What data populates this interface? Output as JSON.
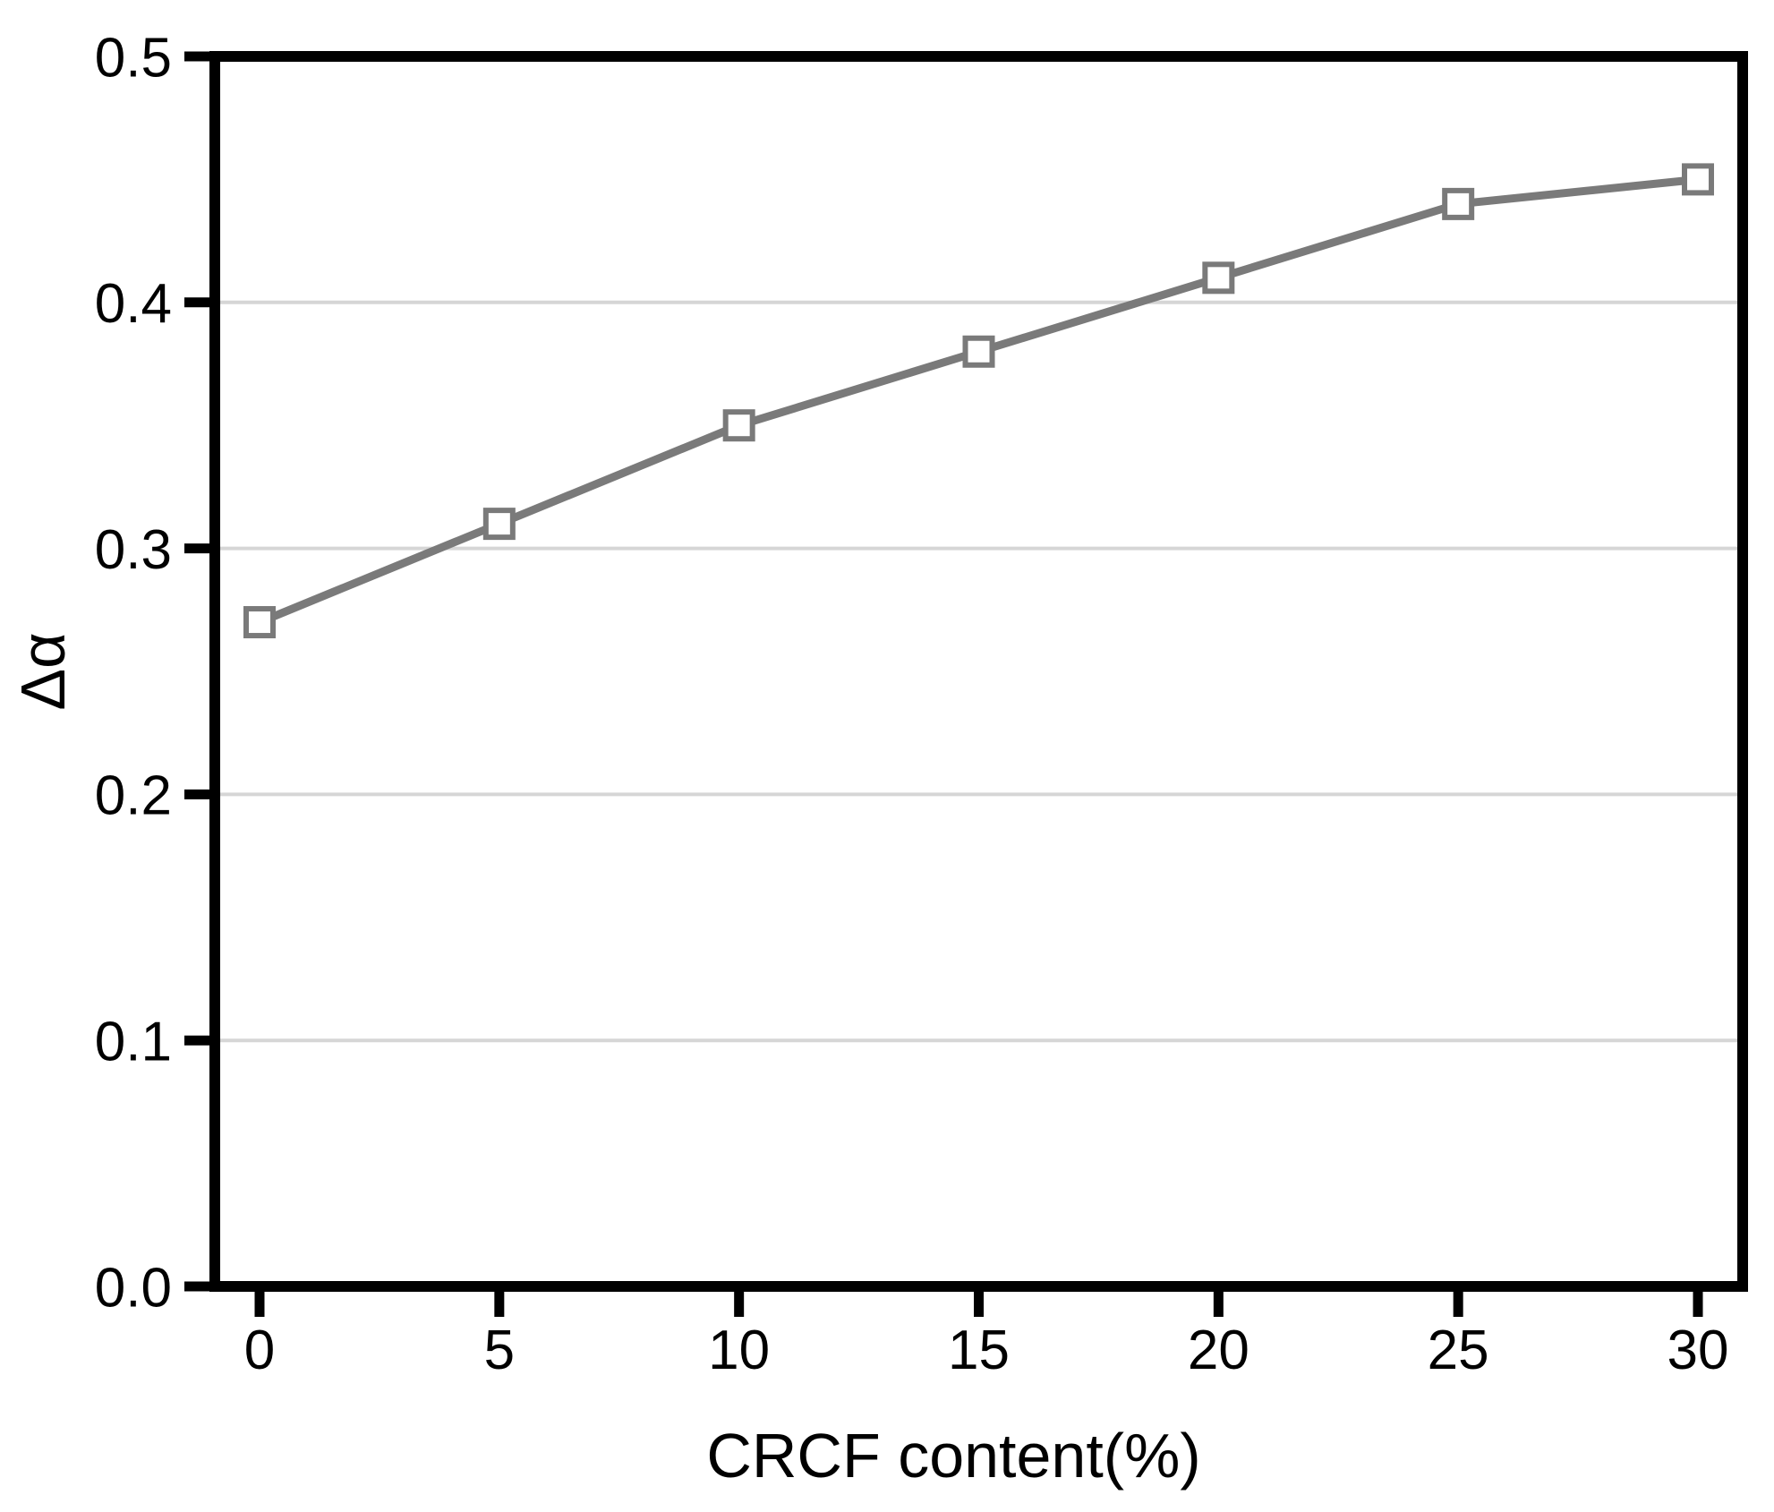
{
  "chart_data": {
    "type": "line",
    "title": "",
    "xlabel": "CRCF content(%)",
    "ylabel": "Δα",
    "x": [
      0,
      5,
      10,
      15,
      20,
      25,
      30
    ],
    "series": [
      {
        "name": "Δα",
        "values": [
          0.27,
          0.31,
          0.35,
          0.38,
          0.41,
          0.44,
          0.45
        ]
      }
    ],
    "xlim": [
      0,
      30
    ],
    "ylim": [
      0.0,
      0.5
    ],
    "xticks": [
      0,
      5,
      10,
      15,
      20,
      25,
      30
    ],
    "xtick_labels": [
      "0",
      "5",
      "10",
      "15",
      "20",
      "25",
      "30"
    ],
    "yticks": [
      0.0,
      0.1,
      0.2,
      0.3,
      0.4,
      0.5
    ],
    "ytick_labels": [
      "0.0",
      "0.1",
      "0.2",
      "0.3",
      "0.4",
      "0.5"
    ],
    "grid": "horizontal",
    "grid_values": [
      0.1,
      0.2,
      0.3,
      0.4
    ],
    "legend": "none",
    "marker": "open-square",
    "colors": {
      "line": "#7a7a7a",
      "marker_edge": "#7a7a7a",
      "marker_fill": "#ffffff",
      "grid": "#d6d6d6",
      "axis": "#000000",
      "text": "#000000",
      "background": "#ffffff"
    }
  }
}
